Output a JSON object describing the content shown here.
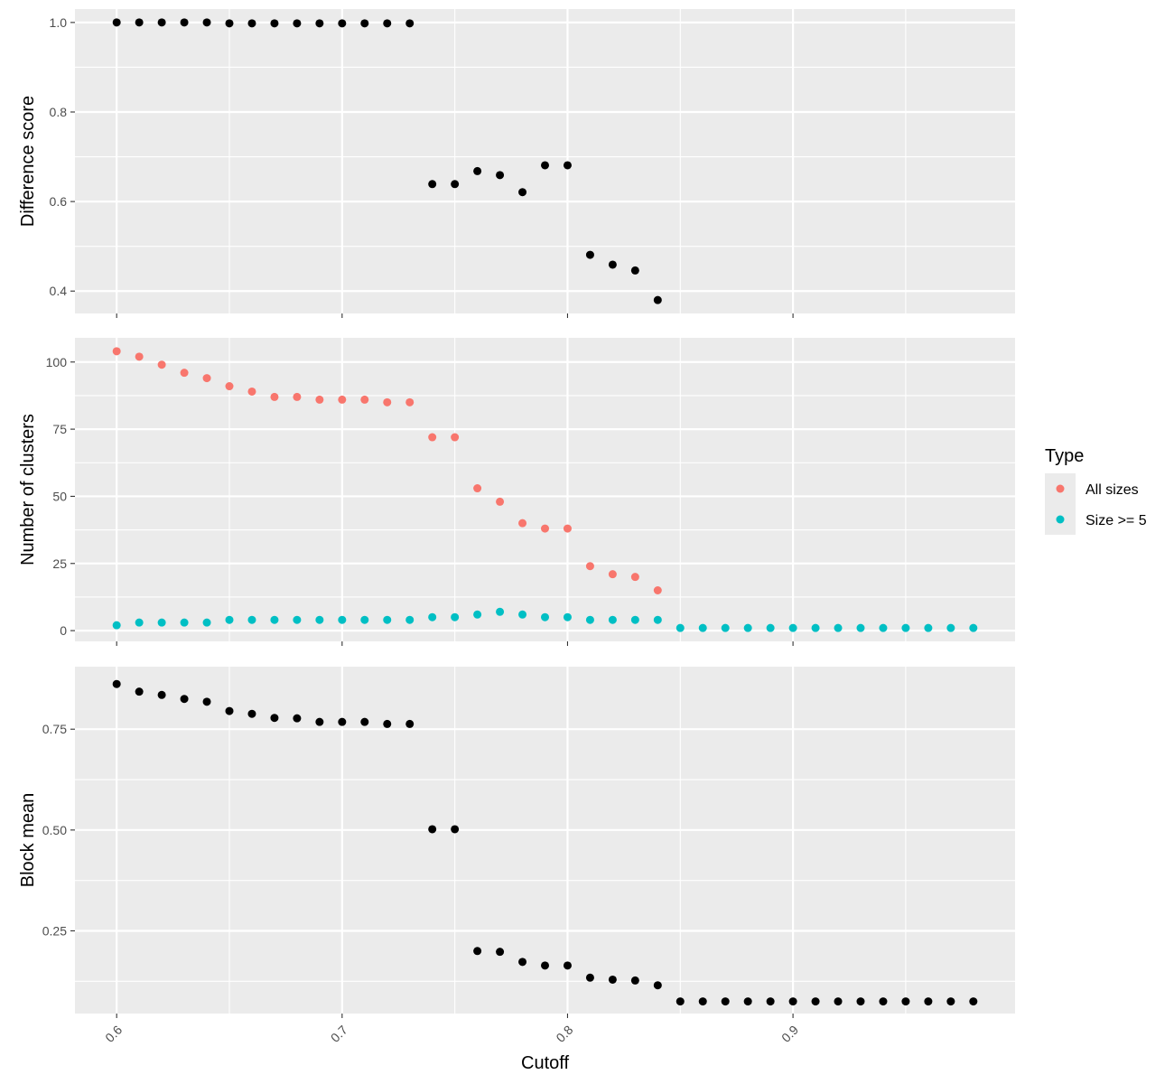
{
  "chart_data": [
    {
      "type": "scatter",
      "ylabel": "Difference score",
      "ylim": [
        0.35,
        1.03
      ],
      "yticks": [
        0.4,
        0.6,
        0.8,
        1.0
      ],
      "ytick_labels": [
        "0.4",
        "0.6",
        "0.8",
        "1.0"
      ],
      "xlim": [
        0.5815,
        0.9985
      ],
      "grid": true,
      "series": [
        {
          "color": "#000000",
          "x": [
            0.6,
            0.61,
            0.62,
            0.63,
            0.64,
            0.65,
            0.66,
            0.67,
            0.68,
            0.69,
            0.7,
            0.71,
            0.72,
            0.73,
            0.74,
            0.75,
            0.76,
            0.77,
            0.78,
            0.79,
            0.8,
            0.81,
            0.82,
            0.83,
            0.84
          ],
          "y": [
            1.0,
            1.0,
            1.0,
            1.0,
            1.0,
            0.998,
            0.998,
            0.998,
            0.998,
            0.998,
            0.998,
            0.998,
            0.998,
            0.998,
            0.639,
            0.639,
            0.668,
            0.659,
            0.621,
            0.681,
            0.681,
            0.481,
            0.459,
            0.446,
            0.38
          ]
        }
      ]
    },
    {
      "type": "scatter",
      "ylabel": "Number of clusters",
      "ylim": [
        -4,
        109
      ],
      "yticks": [
        0,
        25,
        50,
        75,
        100
      ],
      "ytick_labels": [
        "0",
        "25",
        "50",
        "75",
        "100"
      ],
      "xlim": [
        0.5815,
        0.9985
      ],
      "grid": true,
      "series": [
        {
          "name": "All sizes",
          "color": "#F8766D",
          "x": [
            0.6,
            0.61,
            0.62,
            0.63,
            0.64,
            0.65,
            0.66,
            0.67,
            0.68,
            0.69,
            0.7,
            0.71,
            0.72,
            0.73,
            0.74,
            0.75,
            0.76,
            0.77,
            0.78,
            0.79,
            0.8,
            0.81,
            0.82,
            0.83,
            0.84
          ],
          "y": [
            104,
            102,
            99,
            96,
            94,
            91,
            89,
            87,
            87,
            86,
            86,
            86,
            85,
            85,
            72,
            72,
            53,
            48,
            40,
            38,
            38,
            24,
            21,
            20,
            15
          ]
        },
        {
          "name": "Size >= 5",
          "color": "#00BFC4",
          "x": [
            0.6,
            0.61,
            0.62,
            0.63,
            0.64,
            0.65,
            0.66,
            0.67,
            0.68,
            0.69,
            0.7,
            0.71,
            0.72,
            0.73,
            0.74,
            0.75,
            0.76,
            0.77,
            0.78,
            0.79,
            0.8,
            0.81,
            0.82,
            0.83,
            0.84,
            0.85,
            0.86,
            0.87,
            0.88,
            0.89,
            0.9,
            0.91,
            0.92,
            0.93,
            0.94,
            0.95,
            0.96,
            0.97,
            0.98
          ],
          "y": [
            2,
            3,
            3,
            3,
            3,
            4,
            4,
            4,
            4,
            4,
            4,
            4,
            4,
            4,
            5,
            5,
            6,
            7,
            6,
            5,
            5,
            4,
            4,
            4,
            4,
            1,
            1,
            1,
            1,
            1,
            1,
            1,
            1,
            1,
            1,
            1,
            1,
            1,
            1
          ]
        }
      ]
    },
    {
      "type": "scatter",
      "ylabel": "Block mean",
      "xlabel": "Cutoff",
      "ylim": [
        0.045,
        0.905
      ],
      "yticks": [
        0.25,
        0.5,
        0.75
      ],
      "ytick_labels": [
        "0.25",
        "0.50",
        "0.75"
      ],
      "xlim": [
        0.5815,
        0.9985
      ],
      "xticks": [
        0.6,
        0.7,
        0.8,
        0.9
      ],
      "xtick_labels": [
        "0.6",
        "0.7",
        "0.8",
        "0.9"
      ],
      "grid": true,
      "series": [
        {
          "color": "#000000",
          "x": [
            0.6,
            0.61,
            0.62,
            0.63,
            0.64,
            0.65,
            0.66,
            0.67,
            0.68,
            0.69,
            0.7,
            0.71,
            0.72,
            0.73,
            0.74,
            0.75,
            0.76,
            0.77,
            0.78,
            0.79,
            0.8,
            0.81,
            0.82,
            0.83,
            0.84,
            0.85,
            0.86,
            0.87,
            0.88,
            0.89,
            0.9,
            0.91,
            0.92,
            0.93,
            0.94,
            0.95,
            0.96,
            0.97,
            0.98
          ],
          "y": [
            0.862,
            0.843,
            0.835,
            0.825,
            0.818,
            0.795,
            0.788,
            0.778,
            0.777,
            0.768,
            0.768,
            0.768,
            0.763,
            0.763,
            0.502,
            0.502,
            0.2,
            0.198,
            0.173,
            0.164,
            0.164,
            0.134,
            0.129,
            0.127,
            0.115,
            0.075,
            0.075,
            0.075,
            0.075,
            0.075,
            0.075,
            0.075,
            0.075,
            0.075,
            0.075,
            0.075,
            0.075,
            0.075,
            0.075
          ]
        }
      ]
    }
  ],
  "legend": {
    "title": "Type",
    "items": [
      {
        "label": "All sizes",
        "color": "#F8766D"
      },
      {
        "label": "Size >= 5",
        "color": "#00BFC4"
      }
    ]
  }
}
